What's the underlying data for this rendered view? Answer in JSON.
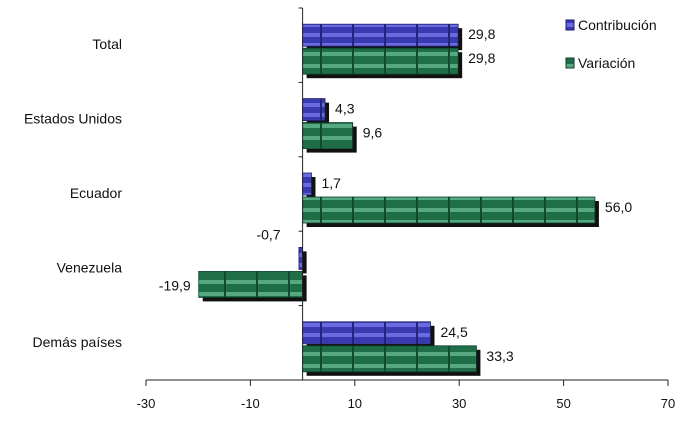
{
  "chart_data": {
    "type": "bar",
    "orientation": "horizontal",
    "categories": [
      "Total",
      "Estados Unidos",
      "Ecuador",
      "Venezuela",
      "Demás países"
    ],
    "series": [
      {
        "name": "Contribución",
        "values": [
          29.8,
          4.3,
          1.7,
          -0.7,
          24.5
        ],
        "labels": [
          "29,8",
          "4,3",
          "1,7",
          "-0,7",
          "24,5"
        ],
        "color": "#3a3ab0"
      },
      {
        "name": "Variación",
        "values": [
          29.8,
          9.6,
          56.0,
          -19.9,
          33.3
        ],
        "labels": [
          "29,8",
          "9,6",
          "56,0",
          "-19,9",
          "33,3"
        ],
        "color": "#1f6e48"
      }
    ],
    "xlim": [
      -30,
      70
    ],
    "xticks": [
      -30,
      -10,
      10,
      30,
      50,
      70
    ],
    "xtick_labels": [
      "-30",
      "-10",
      "10",
      "30",
      "50",
      "70"
    ],
    "grid": false,
    "legend_position": "top-right",
    "title": "",
    "xlabel": "",
    "ylabel": ""
  }
}
